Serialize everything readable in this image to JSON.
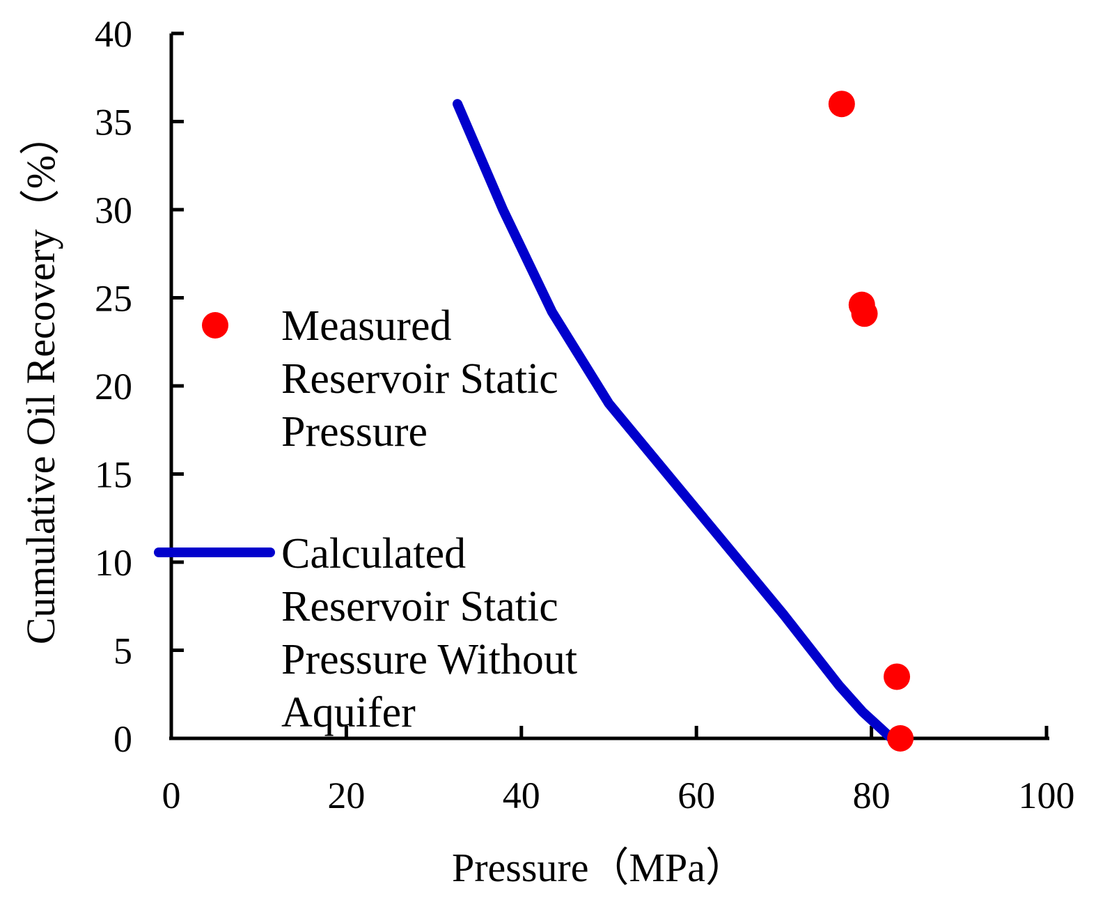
{
  "chart_data": {
    "type": "scatter",
    "title": "",
    "xlabel": "Pressure（MPa）",
    "ylabel": "Cumulative Oil Recovery（%）",
    "xlim": [
      0,
      100
    ],
    "ylim": [
      0,
      40
    ],
    "x_ticks": [
      0,
      20,
      40,
      60,
      80,
      100
    ],
    "y_ticks": [
      0,
      5,
      10,
      15,
      20,
      25,
      30,
      35,
      40
    ],
    "grid": false,
    "legend_position": "left",
    "series": [
      {
        "name": "Measured Reservoir Static Pressure",
        "legend_lines": [
          "Measured",
          "Reservoir Static",
          "Pressure"
        ],
        "kind": "scatter",
        "color": "#ff0000",
        "points": [
          {
            "x": 76.6,
            "y": 36.0
          },
          {
            "x": 78.9,
            "y": 24.6
          },
          {
            "x": 79.2,
            "y": 24.1
          },
          {
            "x": 82.9,
            "y": 3.5
          },
          {
            "x": 83.3,
            "y": 0.0
          }
        ]
      },
      {
        "name": "Calculated Reservoir Static Pressure Without Aquifer",
        "legend_lines": [
          "Calculated",
          "Reservoir Static",
          "Pressure Without",
          "Aquifer"
        ],
        "kind": "line",
        "color": "#0000cc",
        "points": [
          {
            "x": 32.7,
            "y": 36.0
          },
          {
            "x": 37.9,
            "y": 30.0
          },
          {
            "x": 43.5,
            "y": 24.2
          },
          {
            "x": 50.0,
            "y": 19.0
          },
          {
            "x": 60.0,
            "y": 13.0
          },
          {
            "x": 70.0,
            "y": 7.0
          },
          {
            "x": 76.3,
            "y": 3.0
          },
          {
            "x": 79.0,
            "y": 1.5
          },
          {
            "x": 82.3,
            "y": 0.0
          }
        ]
      }
    ]
  }
}
